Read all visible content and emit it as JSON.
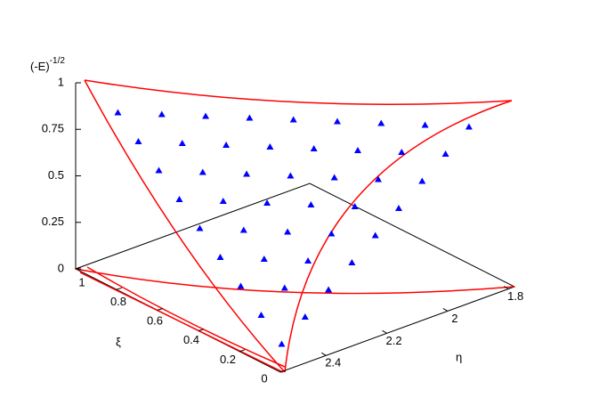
{
  "chart_data": {
    "type": "scatter3d",
    "zlabel": {
      "base": "(-E)",
      "superscript": "-1/2"
    },
    "xlabel": "η",
    "ylabel": "ξ",
    "xlim": [
      1.78,
      2.55
    ],
    "ylim": [
      0,
      1
    ],
    "zlim": [
      0,
      1
    ],
    "xticks": [
      1.8,
      2,
      2.2,
      2.4
    ],
    "yticks": [
      0,
      0.2,
      0.4,
      0.6,
      0.8,
      1
    ],
    "zticks": [
      0,
      0.25,
      0.5,
      0.75,
      1
    ],
    "color": "#0000ff",
    "x": [
      2.512,
      2.435,
      2.358,
      2.281,
      2.204,
      2.127,
      2.05,
      1.973,
      1.896,
      2.512,
      2.435,
      2.358,
      2.281,
      2.204,
      2.127,
      2.05,
      1.973,
      2.512,
      2.435,
      2.358,
      2.281,
      2.204,
      2.127,
      2.05,
      2.512,
      2.435,
      2.358,
      2.281,
      2.204,
      2.127,
      2.512,
      2.435,
      2.358,
      2.281,
      2.204,
      2.512,
      2.435,
      2.358,
      2.281,
      2.512,
      2.435,
      2.358,
      2.512,
      2.435,
      2.512
    ],
    "y": [
      0.05,
      0.05,
      0.05,
      0.05,
      0.05,
      0.05,
      0.05,
      0.05,
      0.05,
      0.15,
      0.15,
      0.15,
      0.15,
      0.15,
      0.15,
      0.15,
      0.15,
      0.25,
      0.25,
      0.25,
      0.25,
      0.25,
      0.25,
      0.25,
      0.35,
      0.35,
      0.35,
      0.35,
      0.35,
      0.35,
      0.45,
      0.45,
      0.45,
      0.45,
      0.45,
      0.55,
      0.55,
      0.55,
      0.55,
      0.65,
      0.65,
      0.65,
      0.75,
      0.75,
      0.85
    ],
    "z": [
      0.1,
      0.2,
      0.3,
      0.4,
      0.5,
      0.6,
      0.7,
      0.8,
      0.9,
      0.2,
      0.3,
      0.4,
      0.5,
      0.6,
      0.7,
      0.8,
      0.9,
      0.3,
      0.4,
      0.5,
      0.6,
      0.7,
      0.8,
      0.9,
      0.4,
      0.5,
      0.6,
      0.7,
      0.8,
      0.9,
      0.5,
      0.6,
      0.7,
      0.8,
      0.9,
      0.6,
      0.7,
      0.8,
      0.9,
      0.7,
      0.8,
      0.9,
      0.8,
      0.9,
      0.9
    ]
  }
}
